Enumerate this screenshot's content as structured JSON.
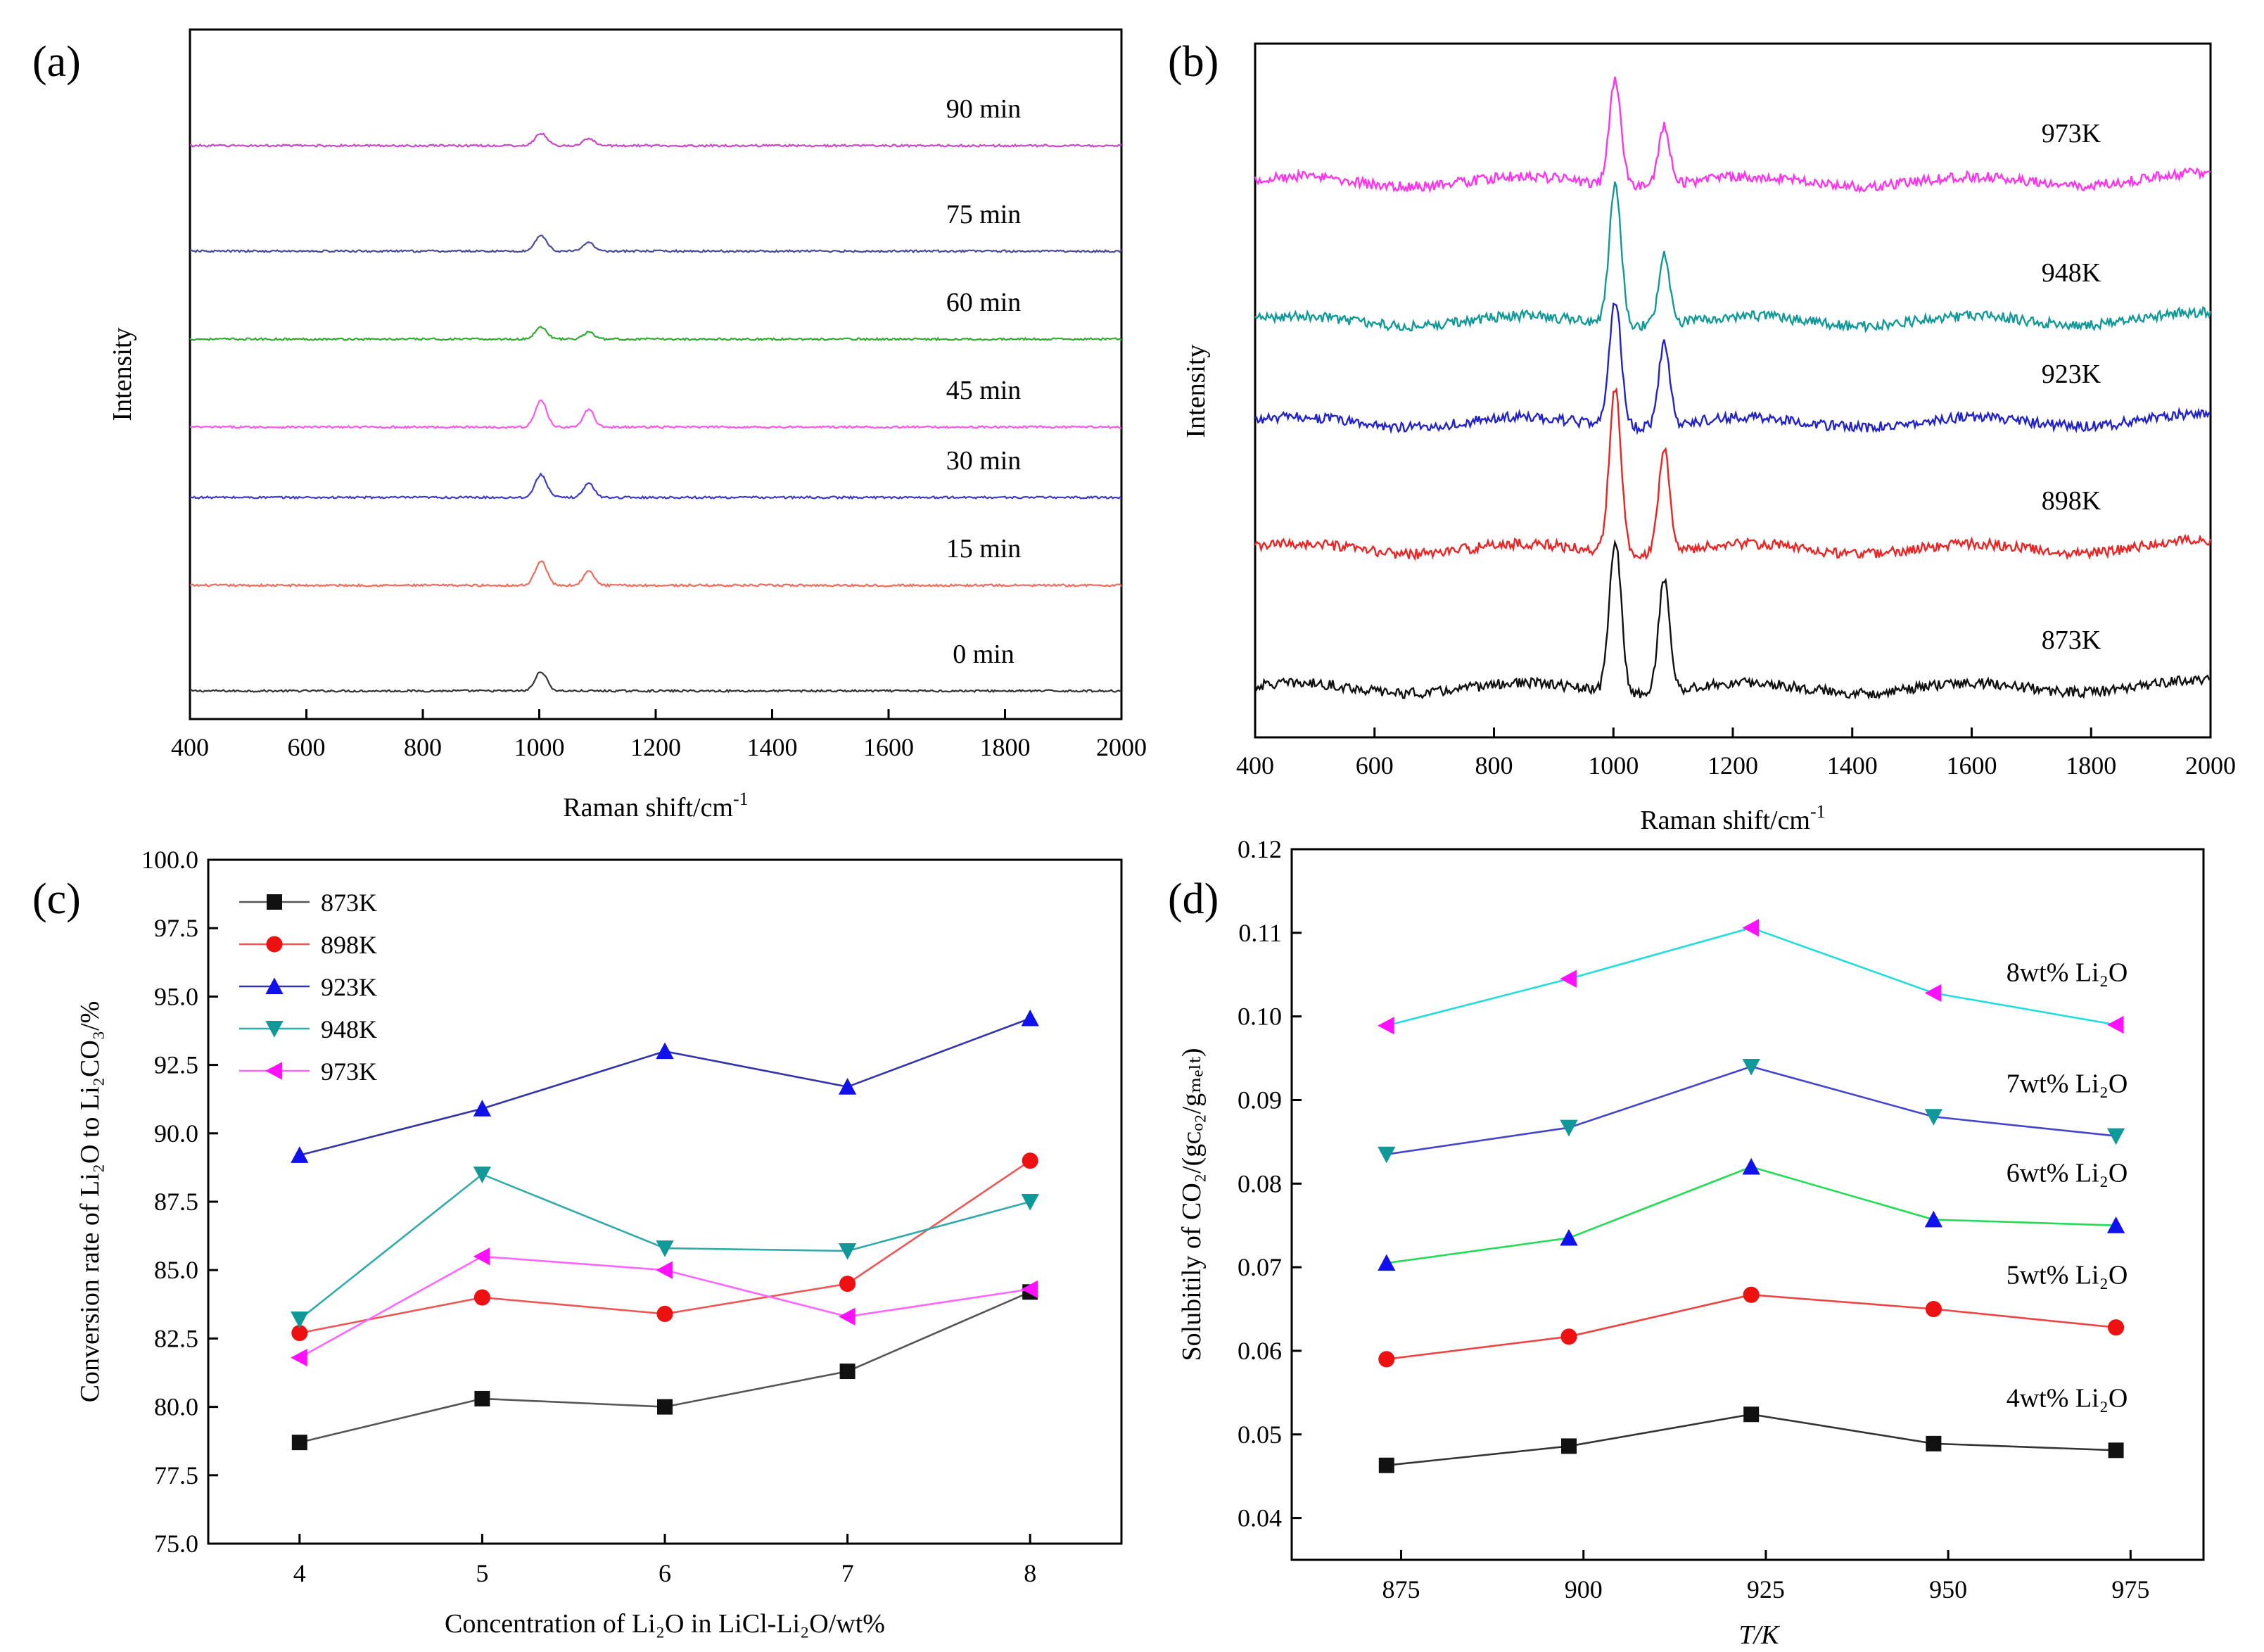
{
  "figure": {
    "panels": [
      "(a)",
      "(b)",
      "(c)",
      "(d)"
    ]
  },
  "chart_data": [
    {
      "id": "a",
      "type": "line",
      "panel_label": "(a)",
      "xlabel": "Raman shift/cm",
      "xlabel_sup": "-1",
      "ylabel": "Intensity",
      "xlim": [
        400,
        2000
      ],
      "xticks": [
        400,
        600,
        800,
        1000,
        1200,
        1400,
        1600,
        1800,
        2000
      ],
      "yticks_shown": false,
      "peaks_cm": [
        1003,
        1085
      ],
      "series": [
        {
          "name": "0 min",
          "color": "#333333",
          "offset": 0.0,
          "peak1": 0.11,
          "peak2": 0.0
        },
        {
          "name": "15 min",
          "color": "#f06a5a",
          "offset": 0.6,
          "peak1": 0.14,
          "peak2": 0.08
        },
        {
          "name": "30 min",
          "color": "#3a3ac8",
          "offset": 1.1,
          "peak1": 0.13,
          "peak2": 0.08
        },
        {
          "name": "45 min",
          "color": "#ff55ee",
          "offset": 1.5,
          "peak1": 0.15,
          "peak2": 0.1
        },
        {
          "name": "60 min",
          "color": "#33aa33",
          "offset": 2.0,
          "peak1": 0.07,
          "peak2": 0.04
        },
        {
          "name": "75 min",
          "color": "#4a4a9a",
          "offset": 2.5,
          "peak1": 0.09,
          "peak2": 0.05
        },
        {
          "name": "90 min",
          "color": "#cc44cc",
          "offset": 3.1,
          "peak1": 0.07,
          "peak2": 0.04
        }
      ]
    },
    {
      "id": "b",
      "type": "line",
      "panel_label": "(b)",
      "xlabel": "Raman shift/cm",
      "xlabel_sup": "-1",
      "ylabel": "Intensity",
      "xlim": [
        400,
        2000
      ],
      "xticks": [
        400,
        600,
        800,
        1000,
        1200,
        1400,
        1600,
        1800,
        2000
      ],
      "yticks_shown": false,
      "peaks_cm": [
        1003,
        1085
      ],
      "series": [
        {
          "name": "873K",
          "color": "#111111",
          "offset": 0.0,
          "peak1": 0.6,
          "peak2": 0.45
        },
        {
          "name": "898K",
          "color": "#ee2222",
          "offset": 0.55,
          "peak1": 0.65,
          "peak2": 0.42
        },
        {
          "name": "923K",
          "color": "#2222cc",
          "offset": 1.05,
          "peak1": 0.5,
          "peak2": 0.32
        },
        {
          "name": "948K",
          "color": "#119999",
          "offset": 1.45,
          "peak1": 0.55,
          "peak2": 0.27
        },
        {
          "name": "973K",
          "color": "#ff33ee",
          "offset": 2.0,
          "peak1": 0.42,
          "peak2": 0.23
        }
      ]
    },
    {
      "id": "c",
      "type": "line",
      "panel_label": "(c)",
      "xlabel": "Concentration of Li₂O in LiCl-Li₂O/wt%",
      "ylabel": "Conversion rate of Li₂O to Li₂CO₃/%",
      "x": [
        4,
        5,
        6,
        7,
        8
      ],
      "xlim": [
        3.5,
        8.5
      ],
      "ylim": [
        75.0,
        100.0
      ],
      "xticks": [
        4,
        5,
        6,
        7,
        8
      ],
      "yticks": [
        "75.0",
        "77.5",
        "80.0",
        "82.5",
        "85.0",
        "87.5",
        "90.0",
        "92.5",
        "95.0",
        "97.5",
        "100.0"
      ],
      "legend_position": "top-left",
      "series": [
        {
          "name": "873K",
          "color": "#111111",
          "line": "#555555",
          "marker": "square",
          "values": [
            78.7,
            80.3,
            80.0,
            81.3,
            84.2
          ]
        },
        {
          "name": "898K",
          "color": "#ee1111",
          "line": "#ee5555",
          "marker": "circle",
          "values": [
            82.7,
            84.0,
            83.4,
            84.5,
            89.0
          ]
        },
        {
          "name": "923K",
          "color": "#1111ee",
          "line": "#3333aa",
          "marker": "triangle-up",
          "values": [
            89.2,
            90.9,
            93.0,
            91.7,
            94.2
          ]
        },
        {
          "name": "948K",
          "color": "#119999",
          "line": "#33aaaa",
          "marker": "triangle-down",
          "values": [
            83.2,
            88.5,
            85.8,
            85.7,
            87.5
          ]
        },
        {
          "name": "973K",
          "color": "#ff11ff",
          "line": "#ff66ff",
          "marker": "triangle-left",
          "values": [
            81.8,
            85.5,
            85.0,
            83.3,
            84.3
          ]
        }
      ]
    },
    {
      "id": "d",
      "type": "line",
      "panel_label": "(d)",
      "xlabel": "T/K",
      "ylabel": "Solubitily of CO₂/(gᴄₒ₂/gₘₑₗₜ)",
      "x": [
        873,
        898,
        923,
        948,
        973
      ],
      "xlim": [
        860,
        985
      ],
      "ylim": [
        0.035,
        0.12
      ],
      "xticks": [
        875,
        900,
        925,
        950,
        975
      ],
      "yticks": [
        "0.04",
        "0.05",
        "0.06",
        "0.07",
        "0.08",
        "0.09",
        "0.10",
        "0.11",
        "0.12"
      ],
      "series": [
        {
          "name": "4wt% Li₂O",
          "color": "#111111",
          "line": "#333333",
          "marker": "square",
          "values": [
            0.0463,
            0.0486,
            0.0524,
            0.0489,
            0.0481
          ]
        },
        {
          "name": "5wt% Li₂O",
          "color": "#ee1111",
          "line": "#ee4444",
          "marker": "circle",
          "values": [
            0.059,
            0.0617,
            0.0667,
            0.065,
            0.0628
          ]
        },
        {
          "name": "6wt% Li₂O",
          "color": "#1111ee",
          "line": "#22dd55",
          "marker": "triangle-up",
          "values": [
            0.0705,
            0.0735,
            0.082,
            0.0757,
            0.075
          ]
        },
        {
          "name": "7wt% Li₂O",
          "color": "#119999",
          "line": "#4444cc",
          "marker": "triangle-down",
          "values": [
            0.0835,
            0.0867,
            0.094,
            0.088,
            0.0857
          ]
        },
        {
          "name": "8wt% Li₂O",
          "color": "#ff11ff",
          "line": "#22dddd",
          "marker": "triangle-left",
          "values": [
            0.0989,
            0.1045,
            0.1106,
            0.1028,
            0.099
          ]
        }
      ]
    }
  ]
}
